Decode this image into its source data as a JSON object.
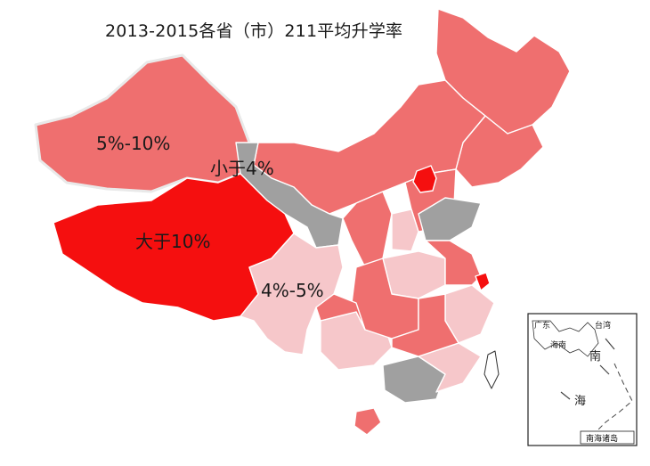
{
  "title": "2013-2015各省（市）211平均升学率",
  "legend_colors": {
    "gt_10": "#f50f0f",
    "p5_10": "#ef6f6f",
    "p4_5": "#f6c7ca",
    "lt_4": "#a0a0a0"
  },
  "labels": {
    "p5_10": "5%-10%",
    "lt_4": "小于4%",
    "gt_10": "大于10%",
    "p4_5": "4%-5%"
  },
  "inset": {
    "caption": "南海诸岛",
    "sea_label_1": "南",
    "sea_label_2": "海",
    "place_1": "广东",
    "place_2": "台湾",
    "place_3": "海南"
  }
}
